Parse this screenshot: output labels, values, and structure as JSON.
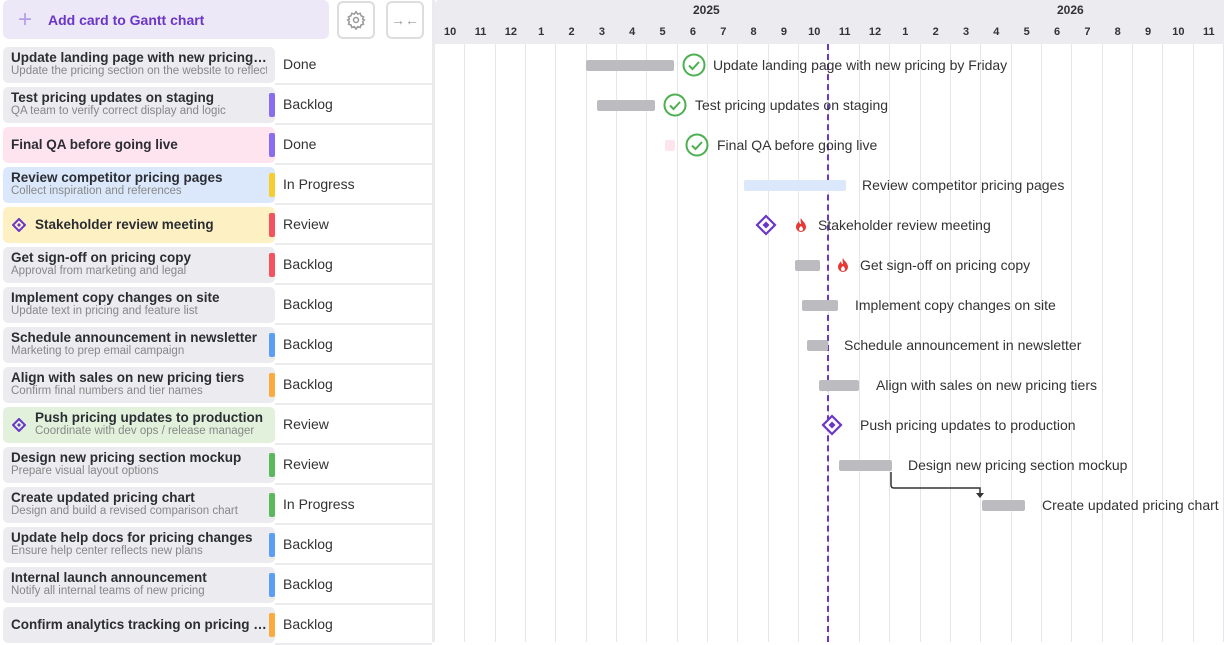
{
  "toolbar": {
    "add_label": "Add card to Gantt chart",
    "settings_icon": "gear-icon",
    "collapse_icon": "collapse-arrows-icon"
  },
  "timeline": {
    "years": [
      "2025",
      "2026"
    ],
    "months": [
      "10",
      "11",
      "12",
      "1",
      "2",
      "3",
      "4",
      "5",
      "6",
      "7",
      "8",
      "9",
      "10",
      "11",
      "12",
      "1",
      "2",
      "3",
      "4",
      "5",
      "6",
      "7",
      "8",
      "9",
      "10",
      "11"
    ]
  },
  "colors": {
    "accent": "#6a35c9",
    "done": "#4caf50",
    "today_line": "#6a35c9",
    "fire": "#e53935"
  },
  "tasks": [
    {
      "title": "Update landing page with new pricing b...",
      "full_title": "Update landing page with new pricing by Friday",
      "subtitle": "Update the pricing section on the website to reflect",
      "status": "Done"
    },
    {
      "title": "Test pricing updates on staging",
      "full_title": "Test pricing updates on staging",
      "subtitle": "QA team to verify correct display and logic",
      "status": "Backlog"
    },
    {
      "title": "Final QA before going live",
      "full_title": "Final QA before going live",
      "subtitle": "",
      "status": "Done"
    },
    {
      "title": "Review competitor pricing pages",
      "full_title": "Review competitor pricing pages",
      "subtitle": "Collect inspiration and references",
      "status": "In Progress"
    },
    {
      "title": "Stakeholder review meeting",
      "full_title": "Stakeholder review meeting",
      "subtitle": "",
      "status": "Review"
    },
    {
      "title": "Get sign-off on pricing copy",
      "full_title": "Get sign-off on pricing copy",
      "subtitle": "Approval from marketing and legal",
      "status": "Backlog"
    },
    {
      "title": "Implement copy changes on site",
      "full_title": "Implement copy changes on site",
      "subtitle": "Update text in pricing and feature list",
      "status": "Backlog"
    },
    {
      "title": "Schedule announcement in newsletter",
      "full_title": "Schedule announcement in newsletter",
      "subtitle": "Marketing to prep email campaign",
      "status": "Backlog"
    },
    {
      "title": "Align with sales on new pricing tiers",
      "full_title": "Align with sales on new pricing tiers",
      "subtitle": "Confirm final numbers and tier names",
      "status": "Backlog"
    },
    {
      "title": "Push pricing updates to production",
      "full_title": "Push pricing updates to production",
      "subtitle": "Coordinate with dev ops / release manager",
      "status": "Review"
    },
    {
      "title": "Design new pricing section mockup",
      "full_title": "Design new pricing section mockup",
      "subtitle": "Prepare visual layout options",
      "status": "Review"
    },
    {
      "title": "Create updated pricing chart",
      "full_title": "Create updated pricing chart",
      "subtitle": "Design and build a revised comparison chart",
      "status": "In Progress"
    },
    {
      "title": "Update help docs for pricing changes",
      "subtitle": "Ensure help center reflects new plans",
      "status": "Backlog"
    },
    {
      "title": "Internal launch announcement",
      "subtitle": "Notify all internal teams of new pricing",
      "status": "Backlog"
    },
    {
      "title": "Confirm analytics tracking on pricing s...",
      "subtitle": "",
      "status": "Backlog"
    }
  ]
}
